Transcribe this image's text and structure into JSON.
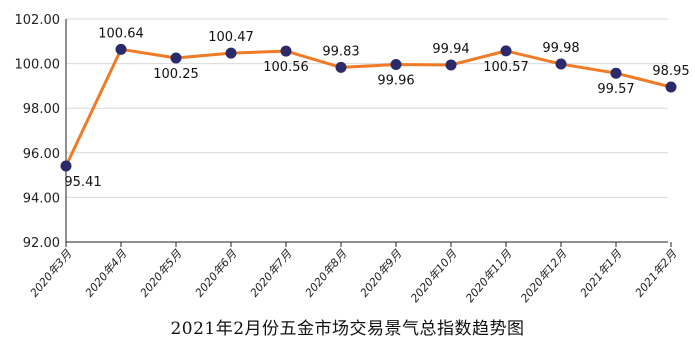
{
  "caption": "2021年2月份五金市场交易景气总指数趋势图",
  "chart_data": {
    "type": "line",
    "title": "2021年2月份五金市场交易景气总指数趋势图",
    "xlabel": "",
    "ylabel": "",
    "categories": [
      "2020年3月",
      "2020年4月",
      "2020年5月",
      "2020年6月",
      "2020年7月",
      "2020年8月",
      "2020年9月",
      "2020年10月",
      "2020年11月",
      "2020年12月",
      "2021年1月",
      "2021年2月"
    ],
    "values": [
      95.41,
      100.64,
      100.25,
      100.47,
      100.56,
      99.83,
      99.96,
      99.94,
      100.57,
      99.98,
      99.57,
      98.95
    ],
    "value_labels": [
      "95.41",
      "100.64",
      "100.25",
      "100.47",
      "100.56",
      "99.83",
      "99.96",
      "99.94",
      "100.57",
      "99.98",
      "99.57",
      "98.95"
    ],
    "label_positions": [
      "below",
      "above",
      "below",
      "above",
      "below",
      "above",
      "below",
      "above",
      "below",
      "above",
      "below",
      "above"
    ],
    "yticks": [
      "92.00",
      "94.00",
      "96.00",
      "98.00",
      "100.00",
      "102.00"
    ],
    "ylim": [
      92,
      102
    ],
    "grid": true,
    "colors": {
      "line": "#f07a26",
      "marker": "#2b2a6b",
      "grid": "#d9d9d9",
      "axis": "#222222"
    }
  }
}
